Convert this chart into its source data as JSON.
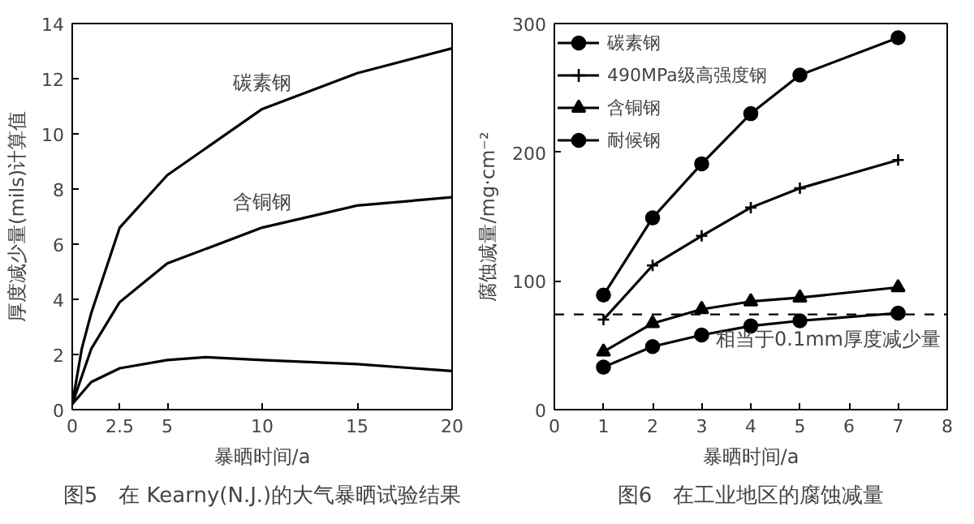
{
  "chart_data": [
    {
      "type": "line",
      "title": "图5　在 Kearny(N.J.)的大气暴晒试验结果",
      "xlabel": "暴晒时间/a",
      "ylabel": "厚度减少量(mils)计算值",
      "xlim": [
        0,
        20
      ],
      "ylim": [
        0,
        14
      ],
      "xticks": [
        0,
        2.5,
        5,
        10,
        15,
        20
      ],
      "yticks": [
        0,
        2,
        4,
        6,
        8,
        10,
        12,
        14
      ],
      "grid": false,
      "legend": false,
      "series": [
        {
          "name": "碳素钢",
          "color": "#000000",
          "x": [
            0,
            0.5,
            1,
            2.5,
            5,
            10,
            15,
            20
          ],
          "values": [
            0.2,
            2.2,
            3.5,
            6.6,
            8.5,
            10.9,
            12.2,
            13.1
          ]
        },
        {
          "name": "含铜钢",
          "color": "#000000",
          "x": [
            0,
            1,
            2.5,
            5,
            10,
            15,
            20
          ],
          "values": [
            0.2,
            2.2,
            3.9,
            5.3,
            6.6,
            7.4,
            7.7
          ]
        },
        {
          "color": "#000000",
          "x": [
            0,
            1,
            2.5,
            5,
            7,
            10,
            15,
            20
          ],
          "values": [
            0.2,
            1.0,
            1.5,
            1.8,
            1.9,
            1.8,
            1.65,
            1.4
          ]
        }
      ]
    },
    {
      "type": "line",
      "title": "图6　在工业地区的腐蚀减量",
      "xlabel": "暴晒时间/a",
      "ylabel": "腐蚀减量/mg·cm⁻²",
      "xlim": [
        0,
        8
      ],
      "ylim": [
        0,
        300
      ],
      "xticks": [
        0,
        1,
        2,
        3,
        4,
        5,
        6,
        7,
        8
      ],
      "yticks": [
        0,
        100,
        200,
        300
      ],
      "grid": false,
      "legend": "top left",
      "x": [
        1,
        2,
        3,
        4,
        5,
        7
      ],
      "series": [
        {
          "name": "碳素钢",
          "color": "#000000",
          "marker": "circle",
          "values": [
            89,
            149,
            191,
            230,
            260,
            289
          ]
        },
        {
          "name": "490MPa级高强度钢",
          "color": "#000000",
          "marker": "cross",
          "values": [
            70,
            112,
            135,
            157,
            172,
            194
          ]
        },
        {
          "name": "含铜钢",
          "color": "#000000",
          "marker": "triangle",
          "values": [
            45,
            67,
            78,
            84,
            87,
            95
          ]
        },
        {
          "name": "耐候钢",
          "color": "#000000",
          "marker": "circle",
          "values": [
            33,
            49,
            58,
            65,
            69,
            75
          ]
        }
      ],
      "ref_lines": [
        {
          "axis": "y",
          "value": 74,
          "label": "相当于0.1mm厚度减少量",
          "line_style": "dashed",
          "color": "#000000"
        }
      ]
    }
  ]
}
